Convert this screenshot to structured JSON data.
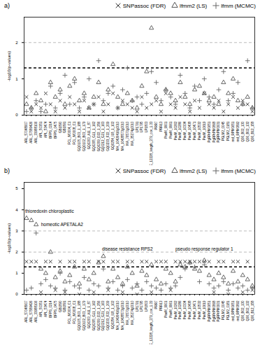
{
  "chart_data": [
    {
      "type": "scatter",
      "title": "a)",
      "ylabel": "-log10(p-values)",
      "legend": "top-right",
      "categories": [
        "ARL_57048907",
        "ARL_57589426",
        "ARL_33988106",
        "APL_50351",
        "APL_53474",
        "BFPS_0214",
        "BFPS_0475",
        "GB1890",
        "GB1891",
        "FCL_M0004_C1",
        "FCL_M0008_C1",
        "GQ0105_B03_1_188",
        "GQ0102_B03_1_179",
        "GQ0203_A11_1_87",
        "GQ0205_G11_1_162",
        "GQ0209_D22_1_256",
        "GQ0212_G21_1_163",
        "GQ0233_F22_1_209",
        "GQ0254_I18_1_102",
        "MA_10426416g0010",
        "MA_10428573g0010",
        "MA_76570g0010",
        "MA_35274g0010",
        "LP1791",
        "LP1795",
        "LP1803",
        "NODE_12228_length_279_cov_1.33",
        "PRR7",
        "PRR13",
        "PaeM_9901",
        "PaeM_9961",
        "PaeM_10262",
        "PaeM_10286",
        "PaeM_10334",
        "PaeM_10438",
        "PaeM_10471",
        "PaeM_10532",
        "PaeM_10619",
        "PgRPrPM0651",
        "PgRPrPM0868",
        "PgRPrPM0931",
        "PGLM2_0045",
        "PGLM2_0181",
        "rnd_RPM0651",
        "rnd_RPM0892",
        "Q36_B02_130",
        "Q36_B02_132",
        "Q36_B12_158"
      ],
      "series": [
        {
          "name": "SNPassoc (FDR)",
          "marker": "times",
          "color": "#333333",
          "values": [
            0.5,
            0.1,
            0.3,
            0.2,
            0.6,
            0.3,
            0.1,
            0.4,
            0.2,
            0.5,
            0.3,
            0.1,
            0.4,
            0.2,
            0.3,
            0.5,
            0.1,
            0.3,
            0.6,
            0.2,
            0.4,
            0.3,
            0.2,
            0.1,
            0.5,
            0.2,
            0.3,
            0.4,
            0.1,
            0.6,
            0.3,
            0.2,
            0.5,
            0.3,
            0.1,
            0.4,
            0.2,
            0.6,
            0.3,
            0.2,
            0.4,
            0.1,
            0.3,
            0.5,
            0.2,
            0.4,
            0.3,
            0.1
          ]
        },
        {
          "name": "lfmm2 (LS)",
          "marker": "triangle",
          "color": "#555555",
          "values": [
            0.3,
            0.2,
            0.6,
            0.4,
            0.1,
            0.9,
            0.5,
            0.7,
            0.3,
            0.8,
            1.0,
            0.4,
            0.6,
            0.2,
            0.5,
            0.9,
            0.3,
            0.7,
            1.4,
            0.5,
            0.3,
            0.6,
            0.4,
            0.2,
            0.8,
            1.2,
            2.4,
            0.5,
            0.3,
            0.7,
            0.6,
            0.4,
            0.9,
            0.5,
            0.3,
            0.7,
            0.8,
            0.6,
            0.4,
            0.5,
            0.3,
            0.9,
            0.6,
            1.0,
            0.4,
            0.3,
            0.5,
            0.2
          ]
        },
        {
          "name": "lfmm (MCMC)",
          "marker": "plus",
          "color": "#666666",
          "values": [
            0.1,
            0.2,
            0.4,
            0.1,
            0.3,
            0.8,
            0.2,
            0.6,
            1.1,
            0.3,
            0.9,
            0.2,
            0.5,
            1.0,
            0.3,
            1.5,
            0.4,
            0.6,
            0.8,
            0.2,
            0.7,
            1.3,
            0.4,
            0.5,
            0.3,
            0.6,
            1.2,
            0.9,
            0.4,
            0.7,
            0.5,
            0.3,
            1.1,
            0.6,
            0.2,
            0.8,
            0.4,
            1.0,
            0.5,
            0.3,
            0.7,
            1.2,
            0.4,
            0.6,
            0.9,
            0.3,
            1.5,
            0.2
          ]
        }
      ],
      "reference_lines": [
        {
          "value": 1.3,
          "color": "#000000",
          "line_style": "dashed"
        },
        {
          "value": 2,
          "color": "#bbbbbb",
          "line_style": "dashed"
        }
      ],
      "ylim": [
        0,
        2.7
      ],
      "yticks": [
        0,
        1,
        2
      ],
      "annotations": []
    },
    {
      "type": "scatter",
      "title": "b)",
      "ylabel": "-log10(p-values)",
      "legend": "top-right",
      "categories": [
        "ARL_57048907",
        "ARL_57589426",
        "ARL_33988106",
        "APL_50351",
        "APL_53474",
        "BFPS_0214",
        "BFPS_0475",
        "GB1890",
        "GB1891",
        "FCL_M0004_C1",
        "FCL_M0008_C1",
        "GQ0105_B03_1_188",
        "GQ0102_B03_1_179",
        "GQ0203_A11_1_87",
        "GQ0205_G11_1_162",
        "GQ0209_D22_1_256",
        "GQ0212_G21_1_163",
        "GQ0233_F22_1_209",
        "GQ0254_I18_1_102",
        "MA_10426416g0010",
        "MA_10428573g0010",
        "MA_76570g0010",
        "MA_35274g0010",
        "LP1791",
        "LP1795",
        "LP1803",
        "NODE_12228_length_279_cov_1.33",
        "PRR7",
        "PRR13",
        "PaeM_9901",
        "PaeM_9961",
        "PaeM_10262",
        "PaeM_10286",
        "PaeM_10334",
        "PaeM_10438",
        "PaeM_10471",
        "PaeM_10532",
        "PaeM_10619",
        "PgRPrPM0651",
        "PgRPrPM0868",
        "PgRPrPM0931",
        "PGLM2_0045",
        "PGLM2_0181",
        "rnd_RPM0651",
        "rnd_RPM0892",
        "Q36_B02_130",
        "Q36_B02_132",
        "Q36_B12_158"
      ],
      "series": [
        {
          "name": "SNPassoc (FDR)",
          "marker": "times",
          "color": "#333333",
          "values": [
            1.55,
            1.55,
            1.55,
            0.1,
            1.55,
            1.55,
            0.2,
            1.55,
            0.1,
            1.55,
            1.55,
            0.0,
            1.55,
            1.55,
            0.1,
            1.55,
            1.55,
            0.2,
            1.55,
            1.55,
            0.1,
            1.55,
            1.55,
            0.0,
            1.55,
            1.55,
            0.1,
            1.55,
            1.55,
            1.55,
            0.2,
            1.55,
            1.55,
            1.55,
            1.55,
            1.55,
            1.55,
            1.55,
            1.55,
            0.1,
            1.55,
            1.55,
            0.0,
            1.55,
            1.55,
            0.1,
            1.55,
            0.2
          ]
        },
        {
          "name": "lfmm2 (LS)",
          "marker": "triangle",
          "color": "#555555",
          "values": [
            3.6,
            3.5,
            3.3,
            1.2,
            1.0,
            2.0,
            0.8,
            1.1,
            0.6,
            0.9,
            1.3,
            0.5,
            1.2,
            0.7,
            1.0,
            1.5,
            1.8,
            0.6,
            1.2,
            0.8,
            0.5,
            1.3,
            1.0,
            0.4,
            1.1,
            0.9,
            1.4,
            0.7,
            0.5,
            1.2,
            1.0,
            0.6,
            1.4,
            1.3,
            1.5,
            1.2,
            1.1,
            1.6,
            0.9,
            0.7,
            1.0,
            0.8,
            0.5,
            1.1,
            0.6,
            0.9,
            0.7,
            0.4
          ]
        },
        {
          "name": "lfmm (MCMC)",
          "marker": "plus",
          "color": "#666666",
          "values": [
            0.2,
            0.3,
            2.9,
            0.5,
            0.7,
            0.4,
            0.3,
            1.0,
            0.2,
            0.6,
            0.4,
            0.3,
            0.8,
            0.2,
            0.5,
            0.4,
            1.2,
            0.3,
            0.6,
            0.2,
            0.4,
            0.7,
            0.3,
            0.5,
            0.2,
            0.6,
            0.4,
            0.3,
            0.2,
            0.5,
            0.3,
            0.4,
            0.8,
            1.2,
            1.5,
            1.3,
            0.6,
            1.4,
            0.5,
            0.3,
            0.4,
            0.6,
            0.2,
            0.5,
            0.3,
            0.4,
            0.2,
            0.3
          ]
        }
      ],
      "reference_lines": [
        {
          "value": 1.3,
          "color": "#000000",
          "line_style": "dashed"
        },
        {
          "value": 2,
          "color": "#bbbbbb",
          "line_style": "dashed"
        },
        {
          "value": 3,
          "color": "#bbbbbb",
          "line_style": "dashed"
        }
      ],
      "ylim": [
        0,
        5.3
      ],
      "yticks": [
        0,
        1,
        2,
        3,
        4,
        5
      ],
      "annotations": [
        {
          "text": "thioredoxin chloroplastic",
          "x": "ARL_57048907",
          "y": 3.6
        },
        {
          "text": "homeotic APETALA2",
          "x": "ARL_33988106",
          "y": 3.3
        },
        {
          "text": "disease resistance RPS2",
          "x": "GQ0212_G21_1_163",
          "y": 1.8
        },
        {
          "text": "pseudo response regulator 1",
          "x": "PaeM_10619",
          "y": 1.6
        }
      ]
    }
  ]
}
